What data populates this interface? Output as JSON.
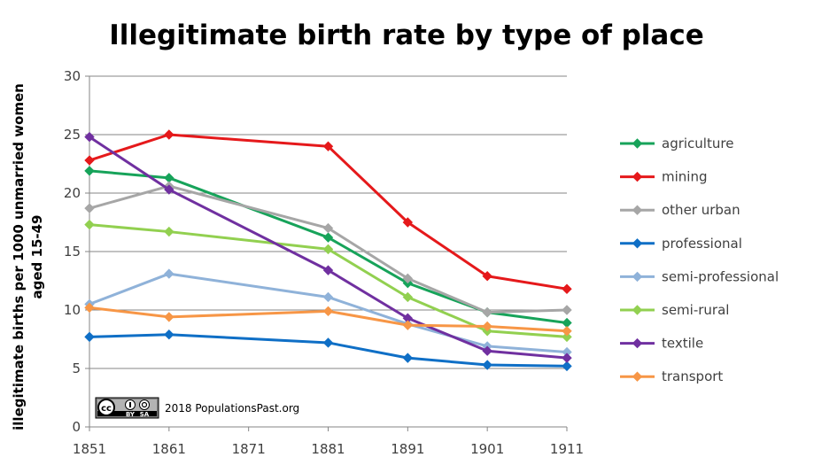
{
  "chart_data": {
    "type": "line",
    "title": "Illegitimate birth rate by type of place",
    "ylabel": "illegitimate births per 1000 unmarried women aged 15-49",
    "ylabel_lines": [
      "illegitimate births per 1000 unmarried women",
      "aged 15-49"
    ],
    "xlabel": "",
    "xlim": [
      1851,
      1911
    ],
    "ylim": [
      0,
      30
    ],
    "x_ticks": [
      1851,
      1861,
      1871,
      1881,
      1891,
      1901,
      1911
    ],
    "y_ticks": [
      0,
      5,
      10,
      15,
      20,
      25,
      30
    ],
    "grid": "horizontal",
    "legend": "right",
    "x": [
      1851,
      1861,
      1881,
      1891,
      1901,
      1911
    ],
    "series": [
      {
        "name": "agriculture",
        "color": "#17a35a",
        "values": [
          21.9,
          21.3,
          16.2,
          12.3,
          9.8,
          8.9
        ]
      },
      {
        "name": "mining",
        "color": "#e5191b",
        "values": [
          22.8,
          25.0,
          24.0,
          17.5,
          12.9,
          11.8
        ]
      },
      {
        "name": "other urban",
        "color": "#a6a6a6",
        "values": [
          18.7,
          20.6,
          17.0,
          12.7,
          9.8,
          10.0
        ]
      },
      {
        "name": "professional",
        "color": "#0f6fc6",
        "values": [
          7.7,
          7.9,
          7.2,
          5.9,
          5.3,
          5.2
        ]
      },
      {
        "name": "semi-professional",
        "color": "#8fb2d9",
        "values": [
          10.5,
          13.1,
          11.1,
          8.8,
          6.9,
          6.4
        ]
      },
      {
        "name": "semi-rural",
        "color": "#92d050",
        "values": [
          17.3,
          16.7,
          15.2,
          11.1,
          8.2,
          7.7
        ]
      },
      {
        "name": "textile",
        "color": "#7030a0",
        "values": [
          24.8,
          20.3,
          13.4,
          9.3,
          6.5,
          5.9
        ]
      },
      {
        "name": "transport",
        "color": "#f79646",
        "values": [
          10.2,
          9.4,
          9.9,
          8.7,
          8.6,
          8.2
        ]
      }
    ]
  },
  "credit": {
    "text": "2018 PopulationsPast.org",
    "license_icon": "cc-by-sa-icon",
    "license_labels": [
      "BY",
      "SA"
    ]
  }
}
